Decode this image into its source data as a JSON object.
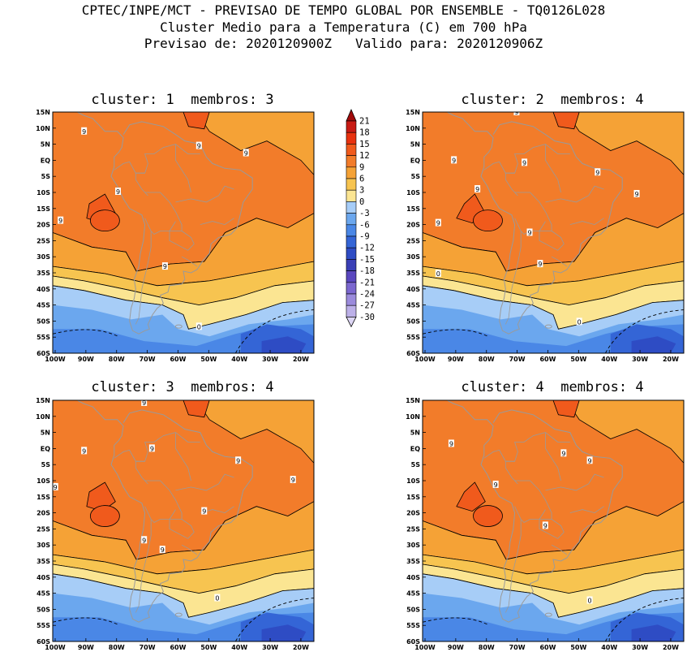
{
  "header": {
    "line1": "CPTEC/INPE/MCT - PREVISAO DE TEMPO GLOBAL POR ENSEMBLE - TQ0126L028",
    "line2": "Cluster Medio para a Temperatura (C) em 700 hPa",
    "line3": "Previsao de: 2020120900Z   Valido para: 2020120906Z"
  },
  "axes": {
    "lat_labels": [
      "15N",
      "10N",
      "5N",
      "EQ",
      "5S",
      "10S",
      "15S",
      "20S",
      "25S",
      "30S",
      "35S",
      "40S",
      "45S",
      "50S",
      "55S",
      "60S"
    ],
    "lon_labels": [
      "100W",
      "90W",
      "80W",
      "70W",
      "60W",
      "50W",
      "40W",
      "30W",
      "20W"
    ]
  },
  "panels": [
    {
      "title": "cluster: 1  membros: 3",
      "cluster": 1,
      "membros": 3
    },
    {
      "title": "cluster: 2  membros: 4",
      "cluster": 2,
      "membros": 4
    },
    {
      "title": "cluster: 3  membros: 4",
      "cluster": 3,
      "membros": 4
    },
    {
      "title": "cluster: 4  membros: 4",
      "cluster": 4,
      "membros": 4
    }
  ],
  "contour_labels": [
    "9",
    "0"
  ],
  "colorbar": {
    "labels": [
      "21",
      "18",
      "15",
      "12",
      "9",
      "6",
      "3",
      "0",
      "-3",
      "-6",
      "-9",
      "-12",
      "-15",
      "-18",
      "-21",
      "-24",
      "-27",
      "-30"
    ],
    "colors": [
      "#a10b0b",
      "#c81b14",
      "#e8320f",
      "#f05a1c",
      "#f27c2a",
      "#f5a236",
      "#f7c450",
      "#fbe592",
      "#a7cdf7",
      "#6ba7ee",
      "#4a87e6",
      "#3465d6",
      "#2e4cc4",
      "#3a3fb6",
      "#5a47bf",
      "#7b67cf",
      "#9b8bdc",
      "#bcb0e8",
      "#ddd6f4"
    ]
  },
  "colors": {
    "coast": "#9a9a9a",
    "contour": "#000000"
  }
}
